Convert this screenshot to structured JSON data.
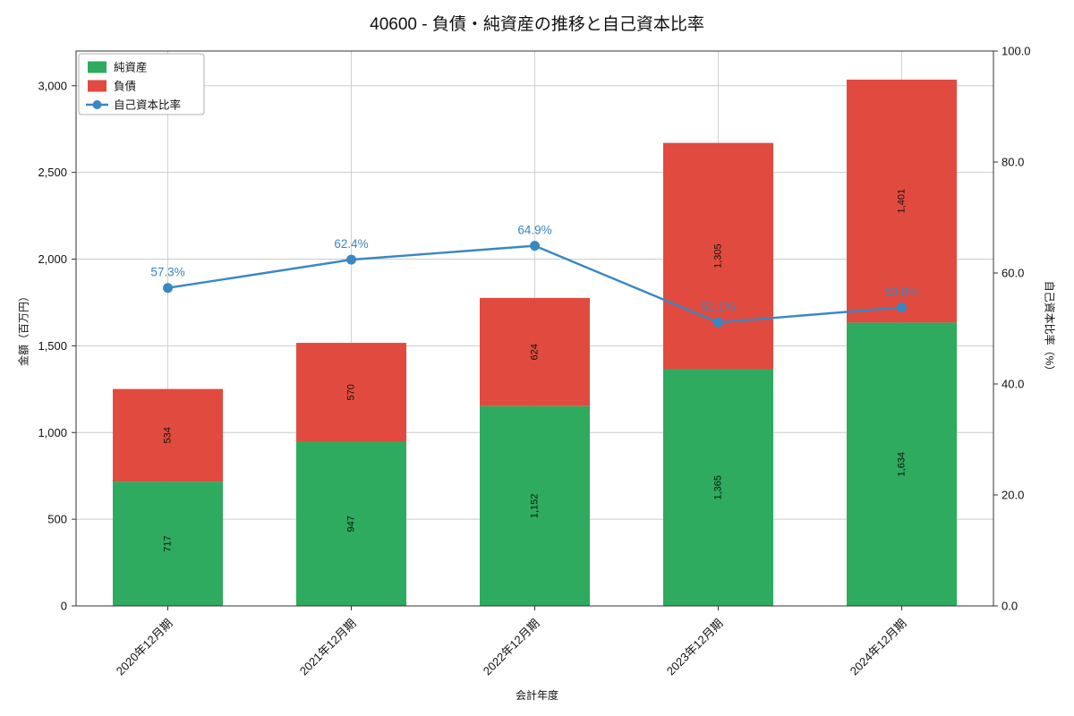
{
  "figure": {
    "title": "40600 - 負債・純資産の推移と自己資本比率",
    "xlabel": "会計年度",
    "ylabel_left": "金額（百万円）",
    "ylabel_right": "自己資本比率（%）"
  },
  "colors": {
    "net_assets_green": "#2eab5e",
    "liabilities_red": "#e14b3f",
    "ratio_blue": "#3a87c2",
    "grid": "#cccccc",
    "spine": "#333333",
    "text": "#111111"
  },
  "chart_data": {
    "type": "bar",
    "stacked": true,
    "title": "40600 - 負債・純資産の推移と自己資本比率",
    "xlabel": "会計年度",
    "ylabel": "金額（百万円）",
    "ylabel2": "自己資本比率（%）",
    "categories": [
      "2020年12月期",
      "2021年12月期",
      "2022年12月期",
      "2023年12月期",
      "2024年12月期"
    ],
    "series": [
      {
        "name": "純資産",
        "kind": "bar",
        "color": "#2eab5e",
        "values": [
          717,
          947,
          1152,
          1365,
          1634
        ]
      },
      {
        "name": "負債",
        "kind": "bar",
        "color": "#e14b3f",
        "values": [
          534,
          570,
          624,
          1305,
          1401
        ]
      },
      {
        "name": "自己資本比率",
        "kind": "line",
        "axis": "right",
        "color": "#3a87c2",
        "unit": "%",
        "values": [
          57.3,
          62.4,
          64.9,
          51.1,
          53.8
        ]
      }
    ],
    "ratio_labels": [
      "57.3%",
      "62.4%",
      "64.9%",
      "51.1%",
      "53.8%"
    ],
    "ylim": [
      0,
      3200
    ],
    "y2lim": [
      0,
      100
    ],
    "yticks": [
      0,
      500,
      1000,
      1500,
      2000,
      2500,
      3000
    ],
    "y2ticks": [
      0,
      20,
      40,
      60,
      80,
      100
    ],
    "grid": true,
    "legend_position": "upper left"
  }
}
